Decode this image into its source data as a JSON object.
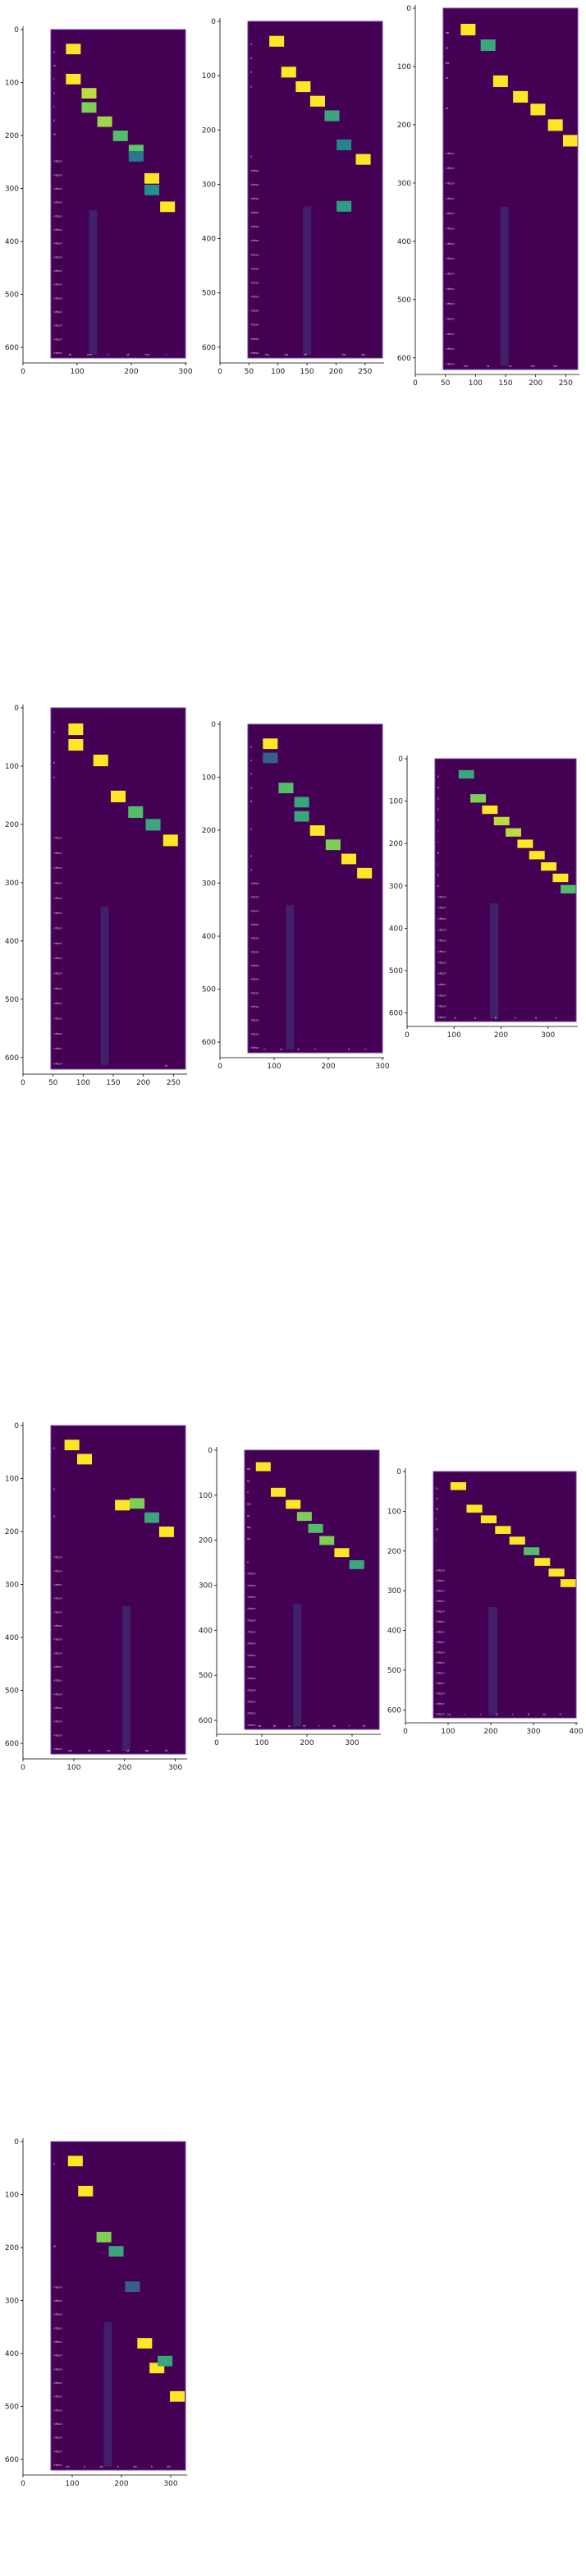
{
  "chart_data": [
    {
      "type": "heatmap",
      "xticks": [
        0,
        100,
        200,
        300
      ],
      "yticks": [
        0,
        100,
        200,
        300,
        400,
        500,
        600
      ],
      "col_labels": [
        "st",
        "ma",
        "r",
        "st",
        "ma",
        "r"
      ],
      "row_labels": [
        "",
        "e",
        "m",
        "t",
        "e",
        "t",
        "e",
        "er",
        "",
        "<fes>",
        "<fes>",
        "<fes>",
        "<fes>",
        "<fes>",
        "<fes>",
        "<fes>",
        "<fes>",
        "<fes>",
        "<fes>",
        "<fes>",
        "<fes>",
        "<fes>",
        "<fes>",
        "<fes>"
      ],
      "xlim": [
        0,
        300
      ],
      "ylim": [
        0,
        620
      ],
      "cells": [
        [
          50,
          0,
          1
        ],
        [
          50,
          30,
          1
        ],
        [
          85,
          30,
          0.9
        ],
        [
          85,
          30,
          0.8
        ],
        [
          120,
          30,
          0.85
        ],
        [
          155,
          30,
          0.7
        ],
        [
          190,
          30,
          0.75
        ],
        [
          190,
          15,
          0.4
        ],
        [
          225,
          30,
          1
        ],
        [
          225,
          25,
          0.5
        ],
        [
          260,
          30,
          1
        ]
      ]
    },
    {
      "type": "heatmap",
      "xticks": [
        0,
        50,
        100,
        150,
        200,
        250
      ],
      "yticks": [
        0,
        100,
        200,
        300,
        400,
        500,
        600
      ],
      "col_labels": [
        "ha",
        "ha",
        "th",
        "",
        "ha",
        "da"
      ],
      "row_labels": [
        "",
        "e",
        "e",
        "h",
        "e",
        "",
        "",
        "",
        "",
        "e",
        "<fes>",
        "<fes>",
        "<fes>",
        "<fes>",
        "<fes>",
        "<fes>",
        "<fes>",
        "<fes>",
        "<fes>",
        "<fes>",
        "<fes>",
        "<fes>",
        "<fes>",
        "<fes>"
      ],
      "xlim": [
        0,
        280
      ],
      "ylim": [
        0,
        620
      ],
      "cells": [
        [
          60,
          0,
          1
        ],
        [
          85,
          30,
          1
        ],
        [
          115,
          30,
          1
        ],
        [
          145,
          30,
          1
        ],
        [
          175,
          30,
          0.6
        ],
        [
          200,
          170,
          0.55
        ],
        [
          200,
          30,
          0.45
        ],
        [
          240,
          30,
          1
        ]
      ]
    },
    {
      "type": "heatmap",
      "xticks": [
        0,
        50,
        100,
        150,
        200,
        250
      ],
      "yticks": [
        0,
        100,
        200,
        300,
        400,
        500,
        600
      ],
      "col_labels": [
        "tai",
        "la",
        "la",
        "tai",
        "tai"
      ],
      "row_labels": [
        "",
        "ke",
        "er",
        "be",
        "le",
        "",
        "er",
        "",
        "",
        "<fes>",
        "<fes>",
        "<fes>",
        "<fes>",
        "<fes>",
        "<fes>",
        "<fes>",
        "<fes>",
        "<fes>",
        "<fes>",
        "<fes>",
        "<fes>",
        "<fes>",
        "<fes>",
        "<fes>"
      ],
      "xlim": [
        0,
        270
      ],
      "ylim": [
        0,
        620
      ],
      "cells": [
        [
          50,
          0,
          1
        ],
        [
          90,
          0,
          0.6
        ],
        [
          115,
          35,
          1
        ],
        [
          155,
          35,
          1
        ],
        [
          190,
          30,
          1
        ],
        [
          225,
          30,
          1
        ],
        [
          260,
          30,
          1
        ]
      ]
    },
    {
      "type": "heatmap",
      "xticks": [
        0,
        50,
        100,
        150,
        200,
        250
      ],
      "yticks": [
        0,
        100,
        200,
        300,
        400,
        500,
        600
      ],
      "col_labels": [
        "",
        "",
        "",
        "",
        "",
        "ch"
      ],
      "row_labels": [
        "",
        "h",
        "",
        "h",
        "h",
        "",
        "",
        "",
        "<fes>",
        "<fes>",
        "<fes>",
        "<fes>",
        "<fes>",
        "<fes>",
        "<fes>",
        "<fes>",
        "<fes>",
        "<fes>",
        "<fes>",
        "<fes>",
        "<fes>",
        "<fes>",
        "<fes>",
        "<fes>"
      ],
      "xlim": [
        0,
        270
      ],
      "ylim": [
        0,
        620
      ],
      "cells": [
        [
          50,
          0,
          1
        ],
        [
          50,
          0,
          1
        ],
        [
          100,
          0,
          1
        ],
        [
          135,
          35,
          1
        ],
        [
          170,
          35,
          0.7
        ],
        [
          205,
          30,
          0.6
        ],
        [
          240,
          30,
          1
        ]
      ]
    },
    {
      "type": "heatmap",
      "xticks": [
        0,
        100,
        200,
        300
      ],
      "yticks": [
        0,
        100,
        200,
        300,
        400,
        500,
        600
      ],
      "col_labels": [
        "h",
        "lu",
        "e",
        "n",
        "",
        "a",
        "n"
      ],
      "row_labels": [
        "",
        "a",
        "u",
        "e",
        "a",
        "d",
        "",
        "y",
        "",
        "e",
        "e",
        "<fes>",
        "<fes>",
        "<fes>",
        "<fes>",
        "<fes>",
        "<fes>",
        "<fes>",
        "<fes>",
        "<fes>",
        "<fes>",
        "<fes>",
        "<fes>",
        "<fes>"
      ],
      "xlim": [
        0,
        300
      ],
      "ylim": [
        0,
        620
      ],
      "cells": [
        [
          50,
          0,
          1
        ],
        [
          50,
          0,
          0.3
        ],
        [
          85,
          30,
          0.7
        ],
        [
          120,
          30,
          0.6
        ],
        [
          120,
          30,
          0.6
        ],
        [
          155,
          30,
          1
        ],
        [
          190,
          30,
          0.8
        ],
        [
          225,
          30,
          1
        ],
        [
          260,
          30,
          1
        ]
      ]
    },
    {
      "type": "heatmap",
      "xticks": [
        0,
        100,
        200,
        300
      ],
      "yticks": [
        0,
        100,
        200,
        300,
        400,
        500,
        600
      ],
      "col_labels": [
        "fi",
        "a",
        "fi",
        "li",
        "fi",
        "li"
      ],
      "row_labels": [
        "",
        "e",
        "a",
        "e",
        "e",
        "e",
        "i",
        "i",
        "e",
        "i",
        "e",
        "e",
        "<fes>",
        "<fes>",
        "<fes>",
        "<fes>",
        "<fes>",
        "<fes>",
        "<fes>",
        "<fes>",
        "<fes>",
        "<fes>",
        "<fes>",
        "<fes>"
      ],
      "xlim": [
        0,
        360
      ],
      "ylim": [
        0,
        620
      ],
      "cells": [
        [
          80,
          0,
          0.6
        ],
        [
          110,
          30,
          0.8
        ],
        [
          140,
          30,
          1
        ],
        [
          170,
          30,
          0.9
        ],
        [
          200,
          30,
          0.9
        ],
        [
          230,
          30,
          1
        ],
        [
          260,
          30,
          1
        ],
        [
          290,
          30,
          1
        ],
        [
          320,
          30,
          1
        ],
        [
          350,
          30,
          0.7
        ]
      ]
    },
    {
      "type": "heatmap",
      "xticks": [
        0,
        100,
        200,
        300
      ],
      "yticks": [
        0,
        100,
        200,
        300,
        400,
        500,
        600
      ],
      "col_labels": [
        "ea",
        "st",
        "ea",
        "st",
        "ea",
        "st"
      ],
      "row_labels": [
        "",
        "e",
        "",
        "",
        "e",
        "",
        "a",
        "",
        "",
        "<fes>",
        "<fes>",
        "<fes>",
        "<fes>",
        "<fes>",
        "<fes>",
        "<fes>",
        "<fes>",
        "<fes>",
        "<fes>",
        "<fes>",
        "<fes>",
        "<fes>",
        "<fes>",
        "<fes>"
      ],
      "xlim": [
        0,
        320
      ],
      "ylim": [
        0,
        620
      ],
      "cells": [
        [
          50,
          0,
          1
        ],
        [
          80,
          0,
          1
        ],
        [
          170,
          60,
          1
        ],
        [
          205,
          30,
          0.8
        ],
        [
          240,
          30,
          0.6
        ],
        [
          275,
          30,
          1
        ]
      ]
    },
    {
      "type": "heatmap",
      "xticks": [
        0,
        100,
        200,
        300
      ],
      "yticks": [
        0,
        100,
        200,
        300,
        400,
        500,
        600
      ],
      "col_labels": [
        "ca",
        "fe",
        "p",
        "fe",
        "r",
        "fe",
        "r",
        "fe"
      ],
      "row_labels": [
        "",
        "ea",
        "ia",
        "n",
        "ng",
        "la",
        "ag",
        "an",
        "",
        "n",
        "<fes>",
        "<fes>",
        "<fes>",
        "<fes>",
        "<fes>",
        "<fes>",
        "<fes>",
        "<fes>",
        "<fes>",
        "<fes>",
        "<fes>",
        "<fes>",
        "<fes>",
        "<fes>"
      ],
      "xlim": [
        0,
        360
      ],
      "ylim": [
        0,
        620
      ],
      "cells": [
        [
          50,
          0,
          1
        ],
        [
          90,
          30,
          1
        ],
        [
          130,
          30,
          1
        ],
        [
          160,
          30,
          0.8
        ],
        [
          190,
          30,
          0.7
        ],
        [
          220,
          30,
          0.8
        ],
        [
          260,
          30,
          1
        ],
        [
          300,
          30,
          0.6
        ]
      ]
    },
    {
      "type": "heatmap",
      "xticks": [
        0,
        100,
        200,
        300,
        400
      ],
      "yticks": [
        0,
        100,
        200,
        300,
        400,
        500,
        600
      ],
      "col_labels": [
        "ca",
        "i",
        "r",
        "fi",
        "r",
        "fi",
        "ar",
        "fi"
      ],
      "row_labels": [
        "",
        "a",
        "a",
        "ie",
        "i",
        "ai",
        "i",
        "",
        "",
        "<fes>",
        "<fes>",
        "<fes>",
        "<fes>",
        "<fes>",
        "<fes>",
        "<fes>",
        "<fes>",
        "<fes>",
        "<fes>",
        "<fes>",
        "<fes>",
        "<fes>",
        "<fes>",
        "<fes>"
      ],
      "xlim": [
        0,
        400
      ],
      "ylim": [
        0,
        620
      ],
      "cells": [
        [
          70,
          0,
          1
        ],
        [
          115,
          30,
          1
        ],
        [
          155,
          30,
          1
        ],
        [
          195,
          30,
          1
        ],
        [
          235,
          30,
          1
        ],
        [
          275,
          30,
          0.7
        ],
        [
          305,
          30,
          1
        ],
        [
          345,
          30,
          1
        ],
        [
          385,
          30,
          1
        ]
      ]
    },
    {
      "type": "heatmap",
      "xticks": [
        0,
        100,
        200,
        300
      ],
      "yticks": [
        0,
        100,
        200,
        300,
        400,
        500,
        600
      ],
      "col_labels": [
        "ah",
        "h",
        "ah",
        "h",
        "ah",
        "h",
        "ah"
      ],
      "row_labels": [
        "",
        "h",
        "",
        "",
        "",
        "",
        "",
        "ai",
        "",
        "",
        "<fes>",
        "<fes>",
        "<fes>",
        "<fes>",
        "<fes>",
        "<fes>",
        "<fes>",
        "<fes>",
        "<fes>",
        "<fes>",
        "<fes>",
        "<fes>",
        "<fes>",
        "<fes>"
      ],
      "xlim": [
        0,
        330
      ],
      "ylim": [
        0,
        620
      ],
      "cells": [
        [
          60,
          0,
          1
        ],
        [
          85,
          30,
          1
        ],
        [
          130,
          90,
          0.8
        ],
        [
          160,
          90,
          0.6
        ],
        [
          200,
          130,
          0.3
        ],
        [
          230,
          210,
          1
        ],
        [
          260,
          230,
          1
        ],
        [
          280,
          190,
          0.6
        ],
        [
          310,
          230,
          1
        ]
      ]
    }
  ]
}
